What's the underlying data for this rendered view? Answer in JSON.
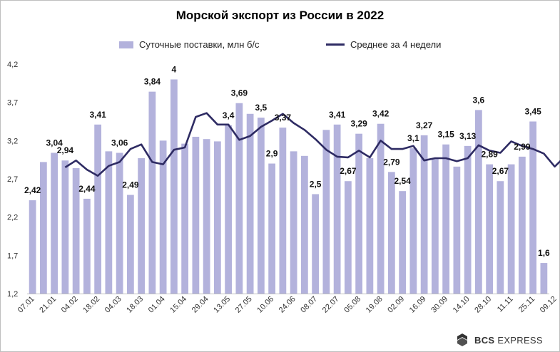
{
  "chart_data": {
    "type": "bar",
    "title": "Морской экспорт из России в 2022",
    "xlabel": "",
    "ylabel": "",
    "ylim": [
      1.2,
      4.2
    ],
    "yticks": [
      "4,2",
      "3,7",
      "3,2",
      "2,7",
      "2,2",
      "1,7",
      "1,2"
    ],
    "ytick_values": [
      4.2,
      3.7,
      3.2,
      2.7,
      2.2,
      1.7,
      1.2
    ],
    "xtick_labels": [
      "07.01",
      "21.01",
      "04.02",
      "18.02",
      "04.03",
      "18.03",
      "01.04",
      "15.04",
      "29.04",
      "13.05",
      "27.05",
      "10.06",
      "24.06",
      "08.07",
      "22.07",
      "05.08",
      "19.08",
      "02.09",
      "16.09",
      "30.09",
      "14.10",
      "28.10",
      "11.11",
      "25.11",
      "09.12"
    ],
    "grid": false,
    "legend_placement": "top",
    "series": [
      {
        "name": "Суточные поставки, млн б/с",
        "type": "bar",
        "color": "#b3b2dc",
        "values": [
          2.42,
          2.92,
          3.04,
          2.94,
          2.84,
          2.44,
          3.41,
          3.06,
          3.04,
          2.49,
          2.97,
          3.84,
          3.2,
          4.0,
          3.16,
          3.25,
          3.22,
          3.19,
          3.4,
          3.69,
          3.55,
          3.5,
          2.9,
          3.37,
          3.06,
          3.0,
          2.5,
          3.34,
          3.41,
          2.67,
          3.29,
          2.97,
          3.42,
          2.79,
          2.54,
          3.1,
          3.27,
          2.97,
          3.15,
          2.86,
          3.13,
          3.6,
          2.89,
          2.67,
          2.89,
          2.99,
          3.45,
          1.6
        ]
      },
      {
        "name": "Среднее за 4 недели",
        "type": "line",
        "color": "#2e2b63",
        "start_index": 3,
        "values": [
          2.85,
          2.94,
          2.82,
          2.74,
          2.87,
          2.92,
          3.09,
          3.15,
          2.92,
          2.89,
          3.08,
          3.11,
          3.51,
          3.56,
          3.41,
          3.41,
          3.21,
          3.26,
          3.38,
          3.46,
          3.55,
          3.43,
          3.34,
          3.22,
          3.08,
          2.99,
          2.98,
          3.07,
          2.98,
          3.2,
          3.09,
          3.09,
          3.13,
          2.94,
          2.97,
          2.97,
          2.93,
          2.97,
          3.14,
          3.07,
          3.04,
          3.19,
          3.13,
          3.09,
          3.03,
          2.86,
          3.0,
          2.75
        ]
      }
    ],
    "data_labels": [
      {
        "index": 0,
        "text": "2,42"
      },
      {
        "index": 2,
        "text": "3,04"
      },
      {
        "index": 3,
        "text": "2,94"
      },
      {
        "index": 5,
        "text": "2,44"
      },
      {
        "index": 6,
        "text": "3,41"
      },
      {
        "index": 8,
        "text": "3,06"
      },
      {
        "index": 9,
        "text": "2,49"
      },
      {
        "index": 11,
        "text": "3,84"
      },
      {
        "index": 13,
        "text": "4"
      },
      {
        "index": 18,
        "text": "3,4"
      },
      {
        "index": 19,
        "text": "3,69"
      },
      {
        "index": 21,
        "text": "3,5"
      },
      {
        "index": 22,
        "text": "2,9"
      },
      {
        "index": 23,
        "text": "3,37"
      },
      {
        "index": 26,
        "text": "2,5"
      },
      {
        "index": 28,
        "text": "3,41"
      },
      {
        "index": 29,
        "text": "2,67"
      },
      {
        "index": 30,
        "text": "3,29"
      },
      {
        "index": 32,
        "text": "3,42"
      },
      {
        "index": 33,
        "text": "2,79"
      },
      {
        "index": 34,
        "text": "2,54"
      },
      {
        "index": 35,
        "text": "3,1"
      },
      {
        "index": 36,
        "text": "3,27"
      },
      {
        "index": 38,
        "text": "3,15"
      },
      {
        "index": 40,
        "text": "3,13"
      },
      {
        "index": 41,
        "text": "3,6"
      },
      {
        "index": 42,
        "text": "2,89"
      },
      {
        "index": 43,
        "text": "2,67"
      },
      {
        "index": 45,
        "text": "2,99"
      },
      {
        "index": 46,
        "text": "3,45"
      },
      {
        "index": 47,
        "text": "1,6"
      }
    ]
  },
  "branding": {
    "logo_icon": "bcs-logo-icon",
    "name_bold": "BCS",
    "name_rest": "EXPRESS"
  }
}
